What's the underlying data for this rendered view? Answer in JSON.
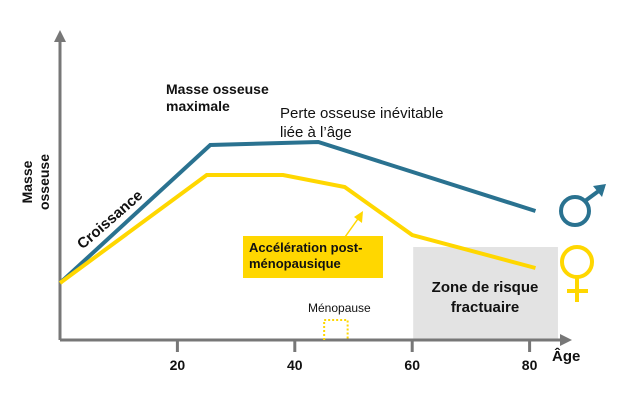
{
  "chart_data": {
    "type": "line",
    "xlabel": "Âge",
    "ylabel": "Masse osseuse",
    "xlim": [
      0,
      85
    ],
    "ylim": [
      0,
      100
    ],
    "xticks": [
      20,
      40,
      60,
      80
    ],
    "grid": false,
    "series": [
      {
        "key": "men",
        "color": "#2a7290",
        "x": [
          0,
          25.6,
          44,
          81
        ],
        "y": [
          19,
          65,
          66,
          43
        ]
      },
      {
        "key": "women",
        "color": "#ffd700",
        "x": [
          0,
          25,
          38,
          48.5,
          60,
          81
        ],
        "y": [
          19,
          55,
          55,
          51,
          35,
          24
        ]
      }
    ],
    "zone": {
      "label": "Zone de risque fractuaire",
      "x": [
        60,
        85
      ],
      "y": [
        0,
        31
      ],
      "color": "#e3e3e3"
    },
    "menopause": {
      "label": "Ménopause",
      "x": [
        45,
        49
      ]
    },
    "annotations": {
      "growth": "Croissance",
      "peak": "Masse osseuse maximale",
      "loss": "Perte osseuse inévitable liée à l’âge",
      "acceleration": "Accélération post-ménopausique"
    },
    "legend": {
      "men": "male-symbol-icon",
      "women": "female-symbol-icon"
    }
  }
}
